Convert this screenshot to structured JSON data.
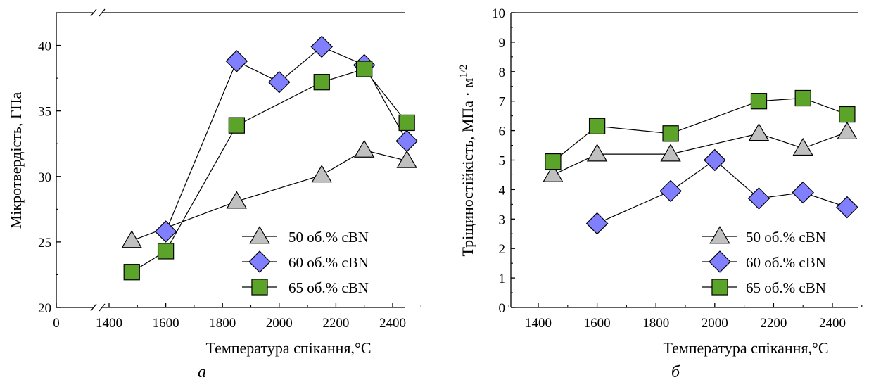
{
  "chart_data": [
    {
      "type": "line",
      "panel_label": "а",
      "xlabel": "Температура спікання,°C",
      "ylabel": "Мікротвердість, ГПа",
      "xlim": [
        1360,
        2500
      ],
      "ylim": [
        20,
        42.5
      ],
      "x_axis_break": true,
      "x_tick_labels": [
        "0",
        "1400",
        "1600",
        "1800",
        "2000",
        "2200",
        "2400"
      ],
      "y_tick_labels": [
        "20",
        "25",
        "30",
        "35",
        "40"
      ],
      "legend_position": "bottom-right",
      "series": [
        {
          "name": "50 об.% cBN",
          "marker": "triangle",
          "color": "#c0c0c0",
          "points": [
            [
              1480,
              25.1
            ],
            [
              1850,
              28.1
            ],
            [
              2150,
              30.1
            ],
            [
              2300,
              32.0
            ],
            [
              2450,
              31.2
            ]
          ]
        },
        {
          "name": "60 об.% cBN",
          "marker": "diamond",
          "color": "#8080ff",
          "points": [
            [
              1600,
              25.8
            ],
            [
              1850,
              38.8
            ],
            [
              2000,
              37.2
            ],
            [
              2150,
              39.9
            ],
            [
              2300,
              38.5
            ],
            [
              2450,
              32.7
            ]
          ]
        },
        {
          "name": "65 об.% cBN",
          "marker": "square",
          "color": "#5ca32a",
          "points": [
            [
              1480,
              22.7
            ],
            [
              1600,
              24.3
            ],
            [
              1850,
              33.9
            ],
            [
              2150,
              37.2
            ],
            [
              2300,
              38.2
            ],
            [
              2450,
              34.1
            ]
          ]
        }
      ]
    },
    {
      "type": "line",
      "panel_label": "б",
      "xlabel": "Температура спікання,°C",
      "ylabel": "Тріщиностійкість, МПа · м",
      "ylabel_sup": "1/2",
      "xlim": [
        1300,
        2500
      ],
      "ylim": [
        0,
        10
      ],
      "x_tick_labels": [
        "1400",
        "1600",
        "1800",
        "2000",
        "2200",
        "2400"
      ],
      "y_tick_labels": [
        "0",
        "1",
        "2",
        "3",
        "4",
        "5",
        "6",
        "7",
        "8",
        "9",
        "10"
      ],
      "legend_position": "bottom-right",
      "series": [
        {
          "name": "50 об.% cBN",
          "marker": "triangle",
          "color": "#c0c0c0",
          "points": [
            [
              1450,
              4.5
            ],
            [
              1600,
              5.2
            ],
            [
              1850,
              5.2
            ],
            [
              2150,
              5.9
            ],
            [
              2300,
              5.4
            ],
            [
              2450,
              5.95
            ]
          ]
        },
        {
          "name": "60 об.% cBN",
          "marker": "diamond",
          "color": "#8080ff",
          "points": [
            [
              1600,
              2.85
            ],
            [
              1850,
              3.95
            ],
            [
              2000,
              5.0
            ],
            [
              2150,
              3.7
            ],
            [
              2300,
              3.9
            ],
            [
              2450,
              3.4
            ]
          ]
        },
        {
          "name": "65 об.% cBN",
          "marker": "square",
          "color": "#5ca32a",
          "points": [
            [
              1450,
              4.95
            ],
            [
              1600,
              6.15
            ],
            [
              1850,
              5.9
            ],
            [
              2150,
              7.0
            ],
            [
              2300,
              7.1
            ],
            [
              2450,
              6.55
            ]
          ]
        }
      ]
    }
  ]
}
